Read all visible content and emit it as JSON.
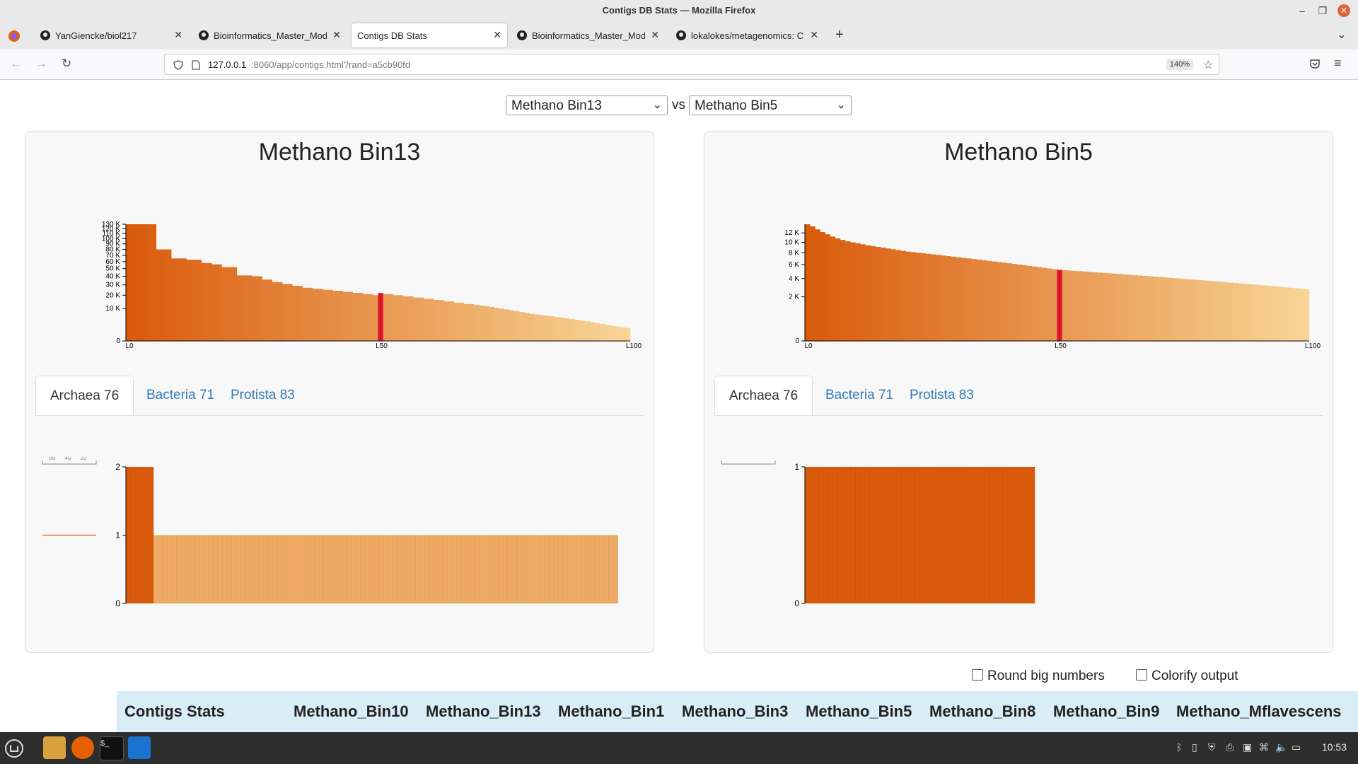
{
  "window": {
    "title": "Contigs DB Stats — Mozilla Firefox"
  },
  "tabs": [
    {
      "label": "YanGiencke/biol217",
      "icon": "github-icon"
    },
    {
      "label": "Bioinformatics_Master_Mod",
      "icon": "github-icon"
    },
    {
      "label": "Contigs DB Stats",
      "icon": "none",
      "active": true
    },
    {
      "label": "Bioinformatics_Master_Mod",
      "icon": "github-icon"
    },
    {
      "label": "lokalokes/metagenomics: C",
      "icon": "github-icon"
    }
  ],
  "urlbar": {
    "host": "127.0.0.1",
    "path": ":8060/app/contigs.html?rand=a5cb90fd",
    "zoom": "140%"
  },
  "selectors": {
    "left": "Methano Bin13",
    "vs": "vs",
    "right": "Methano Bin5"
  },
  "panels": [
    {
      "title": "Methano Bin13",
      "tabs": [
        "Archaea 76",
        "Bacteria 71",
        "Protista 83"
      ],
      "active_tab": 0,
      "chart_data": {
        "type": "bar",
        "title": "",
        "x_tick_labels": [
          "L0",
          "L50",
          "L100"
        ],
        "y_tick_labels": [
          "0",
          "10 K",
          "20 K",
          "30 K",
          "40 K",
          "50 K",
          "60 K",
          "70 K",
          "80 K",
          "90 K",
          "100 K",
          "110 K",
          "120 K",
          "130 K"
        ],
        "ylim": [
          0,
          130000
        ],
        "scale": "sqrt",
        "highlight_index": 50,
        "values": [
          130000,
          130000,
          130000,
          130000,
          130000,
          130000,
          80000,
          80000,
          80000,
          65000,
          65000,
          65000,
          63000,
          63000,
          63000,
          58000,
          58000,
          56000,
          56000,
          52000,
          52000,
          52000,
          41000,
          41000,
          41000,
          40000,
          40000,
          36000,
          36000,
          33000,
          33000,
          31000,
          31000,
          29000,
          29000,
          27000,
          27000,
          26000,
          26000,
          25000,
          25000,
          24000,
          24000,
          23000,
          23000,
          22000,
          22000,
          21000,
          21000,
          20000,
          22000,
          21000,
          21000,
          20000,
          20000,
          19000,
          19000,
          18000,
          18000,
          17000,
          17000,
          16000,
          16000,
          15000,
          15000,
          14000,
          14000,
          13000,
          13000,
          12500,
          12000,
          11500,
          11000,
          10500,
          10000,
          9500,
          9000,
          8500,
          8000,
          7500,
          7000,
          6700,
          6400,
          6100,
          5800,
          5500,
          5200,
          4900,
          4600,
          4300,
          4000,
          3700,
          3400,
          3100,
          2800,
          2500,
          2200,
          2000,
          1800,
          1600
        ]
      },
      "hmm_chart": {
        "type": "bar",
        "y_tick_labels": [
          "0",
          "1",
          "2"
        ],
        "ylim": [
          0,
          2
        ],
        "legend_ticks": [
          "60",
          "40",
          "20"
        ],
        "values": [
          2,
          2,
          2,
          2,
          2,
          2,
          1,
          1,
          1,
          1,
          1,
          1,
          1,
          1,
          1,
          1,
          1,
          1,
          1,
          1,
          1,
          1,
          1,
          1,
          1,
          1,
          1,
          1,
          1,
          1,
          1,
          1,
          1,
          1,
          1,
          1,
          1,
          1,
          1,
          1,
          1,
          1,
          1,
          1,
          1,
          1,
          1,
          1,
          1,
          1,
          1,
          1,
          1,
          1,
          1,
          1,
          1,
          1,
          1,
          1,
          1,
          1,
          1,
          1,
          1,
          1,
          1,
          1,
          1,
          1,
          1,
          1,
          1,
          1,
          1,
          1,
          1,
          1,
          1,
          1,
          1,
          1,
          1,
          1,
          1,
          1,
          1,
          1,
          1,
          1,
          1,
          1,
          1,
          1,
          1,
          1,
          1,
          1,
          1,
          1,
          1,
          1,
          1,
          1,
          1,
          1,
          1
        ]
      }
    },
    {
      "title": "Methano Bin5",
      "tabs": [
        "Archaea 76",
        "Bacteria 71",
        "Protista 83"
      ],
      "active_tab": 0,
      "chart_data": {
        "type": "bar",
        "title": "",
        "x_tick_labels": [
          "L0",
          "L50",
          "L100"
        ],
        "y_tick_labels": [
          "0",
          "2 K",
          "4 K",
          "6 K",
          "8 K",
          "10 K",
          "12 K"
        ],
        "ylim": [
          0,
          14000
        ],
        "scale": "sqrt",
        "highlight_index": 50,
        "values": [
          14000,
          13500,
          12800,
          12200,
          11700,
          11200,
          10800,
          10500,
          10200,
          10000,
          9800,
          9600,
          9400,
          9250,
          9100,
          8950,
          8800,
          8650,
          8500,
          8350,
          8200,
          8100,
          8000,
          7900,
          7800,
          7700,
          7600,
          7500,
          7400,
          7300,
          7200,
          7100,
          7000,
          6900,
          6800,
          6700,
          6600,
          6500,
          6400,
          6300,
          6200,
          6100,
          6000,
          5900,
          5800,
          5700,
          5600,
          5500,
          5400,
          5300,
          5200,
          5150,
          5100,
          5050,
          5000,
          4950,
          4900,
          4850,
          4800,
          4750,
          4700,
          4650,
          4600,
          4550,
          4500,
          4450,
          4400,
          4350,
          4300,
          4250,
          4200,
          4150,
          4100,
          4050,
          4000,
          3950,
          3900,
          3850,
          3800,
          3750,
          3700,
          3650,
          3600,
          3550,
          3500,
          3450,
          3400,
          3350,
          3300,
          3250,
          3200,
          3150,
          3100,
          3050,
          3000,
          2950,
          2900,
          2850,
          2800,
          2750
        ]
      },
      "hmm_chart": {
        "type": "bar",
        "y_tick_labels": [
          "0",
          "1"
        ],
        "ylim": [
          0,
          1
        ],
        "legend_ticks": [],
        "values": [
          1,
          1,
          1,
          1,
          1,
          1,
          1,
          1,
          1,
          1,
          1,
          1,
          1,
          1,
          1,
          1,
          1,
          1,
          1,
          1,
          1,
          1,
          1,
          1,
          1,
          1,
          1,
          1,
          1,
          1,
          1,
          1,
          1,
          1,
          1,
          1,
          1,
          1,
          1,
          1,
          1,
          1,
          1,
          1,
          1,
          1,
          1,
          1,
          1,
          1
        ]
      }
    }
  ],
  "options": {
    "round": "Round big numbers",
    "colorify": "Colorify output"
  },
  "stats_header": [
    "Contigs Stats",
    "Methano_Bin10",
    "Methano_Bin13",
    "Methano_Bin1",
    "Methano_Bin3",
    "Methano_Bin5",
    "Methano_Bin8",
    "Methano_Bin9",
    "Methano_Mflavescens"
  ],
  "taskbar": {
    "clock": "10:53"
  },
  "colors": {
    "dark": "#d95a0b",
    "light": "#f7d597",
    "highlight": "#e0132e",
    "link": "#337ab7"
  }
}
